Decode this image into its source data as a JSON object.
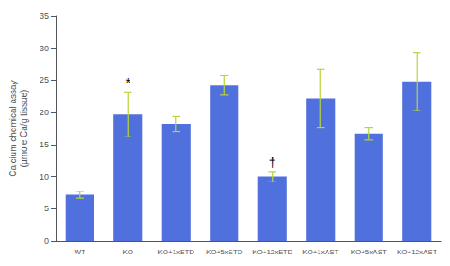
{
  "chart_data": {
    "type": "bar",
    "categories": [
      "WT",
      "KO",
      "KO+1xETD",
      "KO+5xETD",
      "KO+12xETD",
      "KO+1xAST",
      "KO+5xAST",
      "KO+12xAST"
    ],
    "values": [
      7.2,
      19.7,
      18.2,
      24.2,
      10.0,
      22.2,
      16.7,
      24.8
    ],
    "errors": [
      0.5,
      3.5,
      1.2,
      1.5,
      0.8,
      4.5,
      1.0,
      4.5
    ],
    "ylabel": "Calcium chemical assay\n(µmole Ca/g tissue)",
    "ylim": [
      0,
      35
    ],
    "yticks": [
      0,
      5,
      10,
      15,
      20,
      25,
      30,
      35
    ],
    "annotations": [
      {
        "category": "KO",
        "text": "*"
      },
      {
        "category": "KO+12xETD",
        "text": "†"
      }
    ],
    "grid": false
  }
}
